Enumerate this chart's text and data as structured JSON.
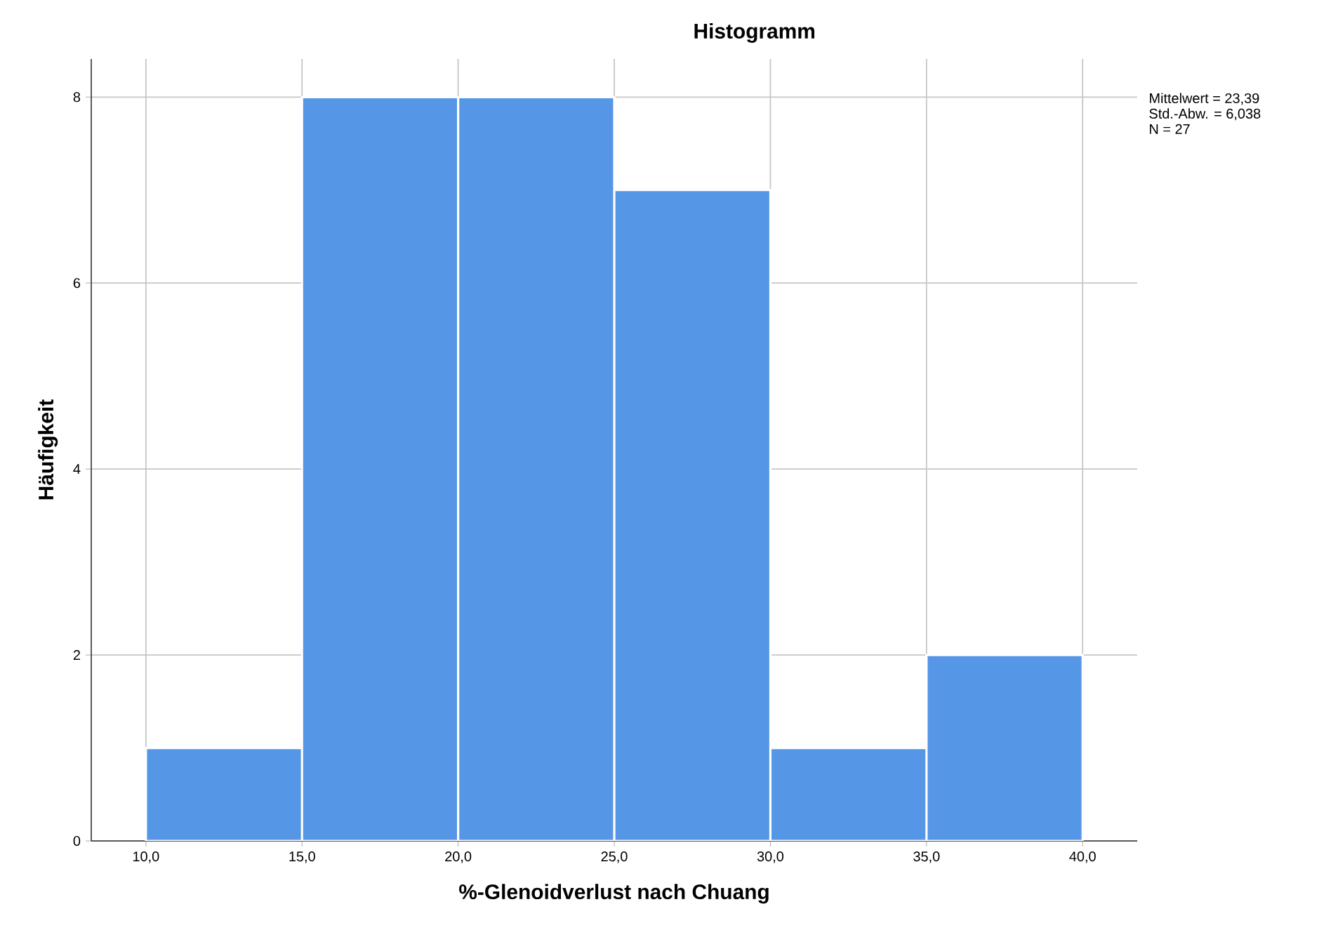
{
  "chart_data": {
    "type": "histogram",
    "title": "Histogramm",
    "xlabel": "%-Glenoidverlust nach Chuang",
    "ylabel": "Häufigkeit",
    "bins": [
      10,
      15,
      20,
      25,
      30,
      35,
      40
    ],
    "values": [
      1,
      8,
      8,
      7,
      1,
      2
    ],
    "color": "#5596e6",
    "xlim": [
      8.25,
      41.75
    ],
    "ylim": [
      0,
      8.41
    ],
    "xticks": [
      {
        "value": 10,
        "label": "10,0"
      },
      {
        "value": 15,
        "label": "15,0"
      },
      {
        "value": 20,
        "label": "20,0"
      },
      {
        "value": 25,
        "label": "25,0"
      },
      {
        "value": 30,
        "label": "30,0"
      },
      {
        "value": 35,
        "label": "35,0"
      },
      {
        "value": 40,
        "label": "40,0"
      }
    ],
    "yticks": [
      0,
      2,
      4,
      6,
      8
    ],
    "grid": true,
    "annotations": [
      "Mittelwert = 23,39",
      "Std.-Abw. = 6,038",
      "N = 27"
    ]
  }
}
